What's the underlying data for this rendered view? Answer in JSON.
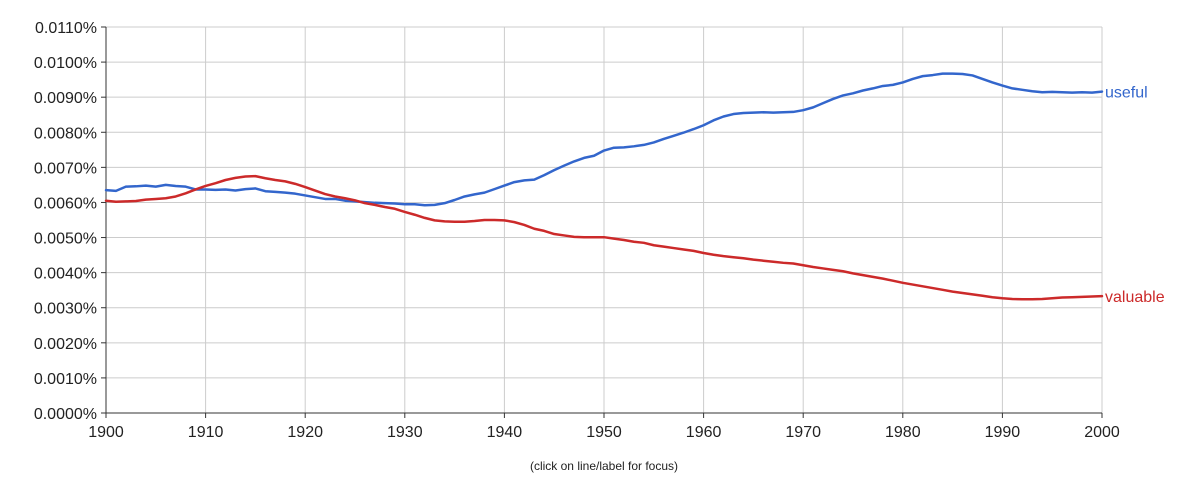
{
  "chart_data": {
    "type": "line",
    "title": "",
    "xlabel": "",
    "ylabel": "",
    "footer_note": "(click on line/label for focus)",
    "xlim": [
      1900,
      2000
    ],
    "ylim": [
      0,
      0.011
    ],
    "x_ticks": [
      {
        "value": 1900,
        "label": "1900"
      },
      {
        "value": 1910,
        "label": "1910"
      },
      {
        "value": 1920,
        "label": "1920"
      },
      {
        "value": 1930,
        "label": "1930"
      },
      {
        "value": 1940,
        "label": "1940"
      },
      {
        "value": 1950,
        "label": "1950"
      },
      {
        "value": 1960,
        "label": "1960"
      },
      {
        "value": 1970,
        "label": "1970"
      },
      {
        "value": 1980,
        "label": "1980"
      },
      {
        "value": 1990,
        "label": "1990"
      },
      {
        "value": 2000,
        "label": "2000"
      }
    ],
    "y_ticks": [
      {
        "value": 0.0,
        "label": "0.0000%"
      },
      {
        "value": 0.001,
        "label": "0.0010%"
      },
      {
        "value": 0.002,
        "label": "0.0020%"
      },
      {
        "value": 0.003,
        "label": "0.0030%"
      },
      {
        "value": 0.004,
        "label": "0.0040%"
      },
      {
        "value": 0.005,
        "label": "0.0050%"
      },
      {
        "value": 0.006,
        "label": "0.0060%"
      },
      {
        "value": 0.007,
        "label": "0.0070%"
      },
      {
        "value": 0.008,
        "label": "0.0080%"
      },
      {
        "value": 0.009,
        "label": "0.0090%"
      },
      {
        "value": 0.01,
        "label": "0.0100%"
      },
      {
        "value": 0.011,
        "label": "0.0110%"
      }
    ],
    "grid": true,
    "legend": "end-of-line labels",
    "x": [
      1900,
      1901,
      1902,
      1903,
      1904,
      1905,
      1906,
      1907,
      1908,
      1909,
      1910,
      1911,
      1912,
      1913,
      1914,
      1915,
      1916,
      1917,
      1918,
      1919,
      1920,
      1921,
      1922,
      1923,
      1924,
      1925,
      1926,
      1927,
      1928,
      1929,
      1930,
      1931,
      1932,
      1933,
      1934,
      1935,
      1936,
      1937,
      1938,
      1939,
      1940,
      1941,
      1942,
      1943,
      1944,
      1945,
      1946,
      1947,
      1948,
      1949,
      1950,
      1951,
      1952,
      1953,
      1954,
      1955,
      1956,
      1957,
      1958,
      1959,
      1960,
      1961,
      1962,
      1963,
      1964,
      1965,
      1966,
      1967,
      1968,
      1969,
      1970,
      1971,
      1972,
      1973,
      1974,
      1975,
      1976,
      1977,
      1978,
      1979,
      1980,
      1981,
      1982,
      1983,
      1984,
      1985,
      1986,
      1987,
      1988,
      1989,
      1990,
      1991,
      1992,
      1993,
      1994,
      1995,
      1996,
      1997,
      1998,
      1999,
      2000
    ],
    "series": [
      {
        "name": "useful",
        "color": "#3366cc",
        "values": [
          0.00635,
          0.00633,
          0.00645,
          0.00646,
          0.00648,
          0.00645,
          0.0065,
          0.00647,
          0.00645,
          0.00637,
          0.00637,
          0.00636,
          0.00637,
          0.00634,
          0.00638,
          0.0064,
          0.00632,
          0.0063,
          0.00628,
          0.00625,
          0.0062,
          0.00615,
          0.0061,
          0.0061,
          0.00605,
          0.00603,
          0.00601,
          0.00599,
          0.00598,
          0.00597,
          0.00595,
          0.00595,
          0.00592,
          0.00593,
          0.00598,
          0.00607,
          0.00617,
          0.00623,
          0.00628,
          0.00638,
          0.00648,
          0.00658,
          0.00663,
          0.00665,
          0.00678,
          0.00692,
          0.00705,
          0.00717,
          0.00727,
          0.00733,
          0.00748,
          0.00756,
          0.00757,
          0.0076,
          0.00764,
          0.00771,
          0.00781,
          0.0079,
          0.00799,
          0.00809,
          0.0082,
          0.00834,
          0.00845,
          0.00852,
          0.00855,
          0.00856,
          0.00857,
          0.00856,
          0.00857,
          0.00858,
          0.00863,
          0.00871,
          0.00883,
          0.00895,
          0.00905,
          0.00911,
          0.00919,
          0.00925,
          0.00932,
          0.00935,
          0.00942,
          0.00952,
          0.0096,
          0.00963,
          0.00967,
          0.00967,
          0.00966,
          0.00962,
          0.00952,
          0.00942,
          0.00933,
          0.00925,
          0.00921,
          0.00917,
          0.00914,
          0.00915,
          0.00914,
          0.00913,
          0.00914,
          0.00913,
          0.00916
        ]
      },
      {
        "name": "valuable",
        "color": "#cc2a2a",
        "values": [
          0.00605,
          0.00602,
          0.00603,
          0.00604,
          0.00608,
          0.0061,
          0.00612,
          0.00617,
          0.00626,
          0.00637,
          0.00647,
          0.00655,
          0.00664,
          0.0067,
          0.00674,
          0.00675,
          0.00669,
          0.00664,
          0.0066,
          0.00653,
          0.00644,
          0.00634,
          0.00624,
          0.00617,
          0.00612,
          0.00606,
          0.00598,
          0.00593,
          0.00587,
          0.00582,
          0.00573,
          0.00565,
          0.00556,
          0.00549,
          0.00546,
          0.00545,
          0.00545,
          0.00547,
          0.0055,
          0.0055,
          0.00549,
          0.00544,
          0.00536,
          0.00525,
          0.00519,
          0.0051,
          0.00506,
          0.00502,
          0.00501,
          0.00501,
          0.00501,
          0.00497,
          0.00493,
          0.00488,
          0.00485,
          0.00478,
          0.00474,
          0.0047,
          0.00466,
          0.00462,
          0.00456,
          0.00451,
          0.00447,
          0.00444,
          0.00441,
          0.00437,
          0.00434,
          0.00431,
          0.00428,
          0.00426,
          0.00421,
          0.00416,
          0.00412,
          0.00408,
          0.00404,
          0.00398,
          0.00393,
          0.00388,
          0.00383,
          0.00377,
          0.00371,
          0.00366,
          0.00361,
          0.00356,
          0.00351,
          0.00346,
          0.00342,
          0.00338,
          0.00334,
          0.0033,
          0.00327,
          0.00325,
          0.00324,
          0.00324,
          0.00325,
          0.00327,
          0.00329,
          0.0033,
          0.00331,
          0.00332,
          0.00333
        ]
      }
    ]
  }
}
